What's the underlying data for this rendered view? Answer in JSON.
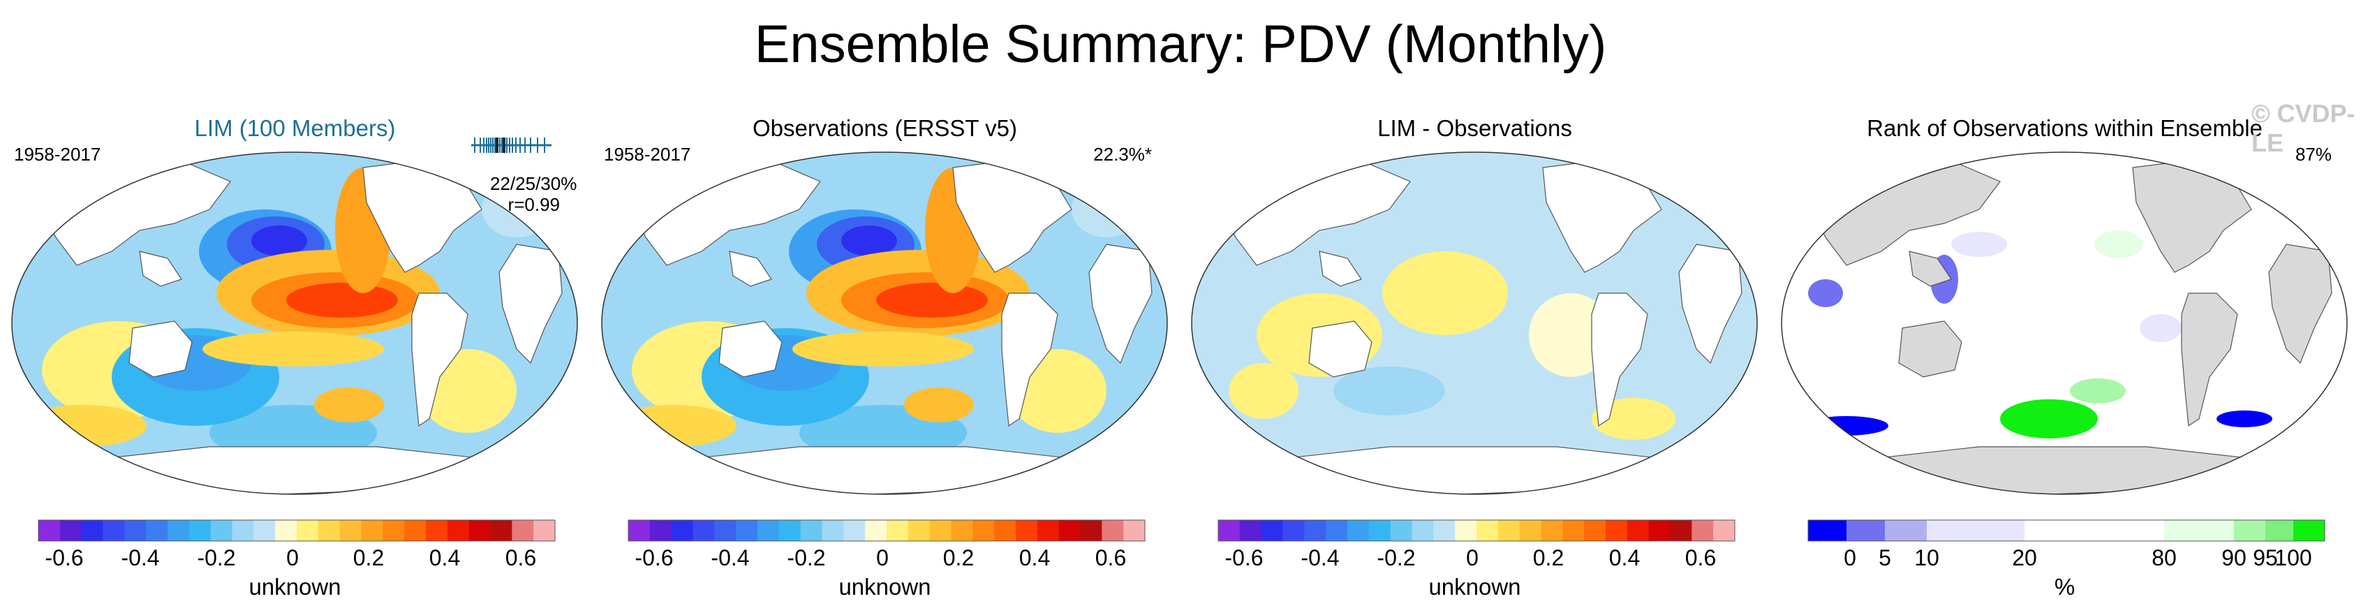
{
  "title": "Ensemble Summary: PDV (Monthly)",
  "watermark": "© CVDP-LE",
  "panels": [
    {
      "title": "LIM (100 Members)",
      "left": "1958-2017",
      "right": "",
      "stats": [
        "22/25/30%",
        "r=0.99"
      ],
      "colorbar_label": "unknown",
      "ticks": [
        "-0.6",
        "-0.4",
        "-0.2",
        "0",
        "0.2",
        "0.4",
        "0.6"
      ]
    },
    {
      "title": "Observations (ERSST v5)",
      "left": "1958-2017",
      "right": "22.3%*",
      "colorbar_label": "unknown",
      "ticks": [
        "-0.6",
        "-0.4",
        "-0.2",
        "0",
        "0.2",
        "0.4",
        "0.6"
      ]
    },
    {
      "title": "LIM - Observations",
      "left": "",
      "right": "",
      "colorbar_label": "unknown",
      "ticks": [
        "-0.6",
        "-0.4",
        "-0.2",
        "0",
        "0.2",
        "0.4",
        "0.6"
      ]
    },
    {
      "title": "Rank of Observations within Ensemble",
      "left": "",
      "right": "87%",
      "colorbar_label": "%",
      "ticks": [
        "0",
        "5",
        "10",
        "20",
        "80",
        "90",
        "95",
        "100"
      ]
    }
  ],
  "colors": {
    "diverging": [
      "#8a2be2",
      "#5a1fd6",
      "#2c2ff0",
      "#3a4af2",
      "#3b62f0",
      "#3b7ef2",
      "#3ba0f2",
      "#35b6f2",
      "#69c7f2",
      "#9ed8f5",
      "#bfe3f5",
      "#fffbd0",
      "#fff17c",
      "#ffd84a",
      "#ffbe32",
      "#ffa21e",
      "#ff8610",
      "#ff6a08",
      "#ff4004",
      "#ee1a02",
      "#d40404",
      "#b80d0d",
      "#e87a7a",
      "#f7b0b0"
    ],
    "rank": [
      "#0000ff",
      "#7070f0",
      "#b0b0f0",
      "#e6e6ff",
      "#ffffff",
      "#e4ffe4",
      "#a8f7a8",
      "#7cef7c",
      "#10ef10"
    ],
    "land": "#ffffff",
    "land_gray": "#d9d9d9",
    "ocean_rank": "#ffffff"
  }
}
